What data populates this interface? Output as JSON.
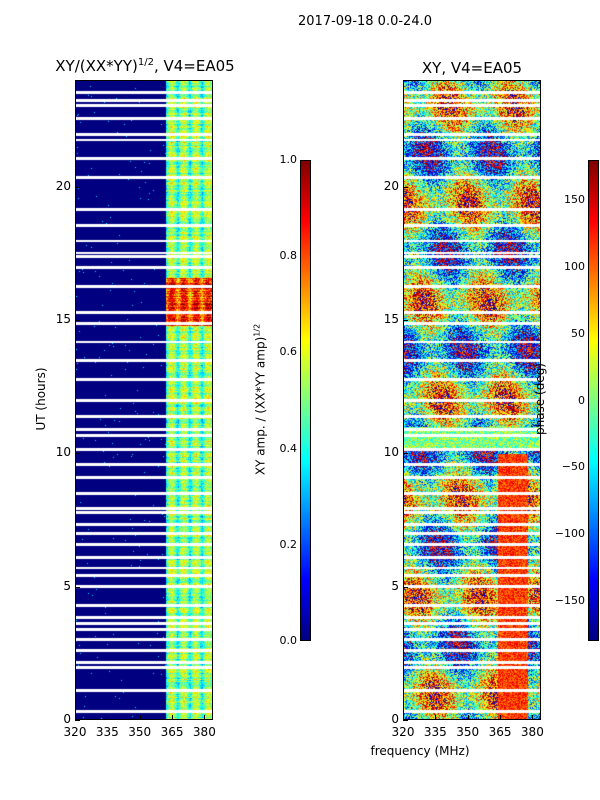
{
  "figure": {
    "suptitle": "2017-09-18 0.0-24.0",
    "xlabel": "frequency (MHz)",
    "ylabel": "UT (hours)"
  },
  "chart_data": [
    {
      "type": "heatmap",
      "title_main": "XY/(XX*YY)",
      "title_sup": "1/2",
      "title_suffix": ", V4=EA05",
      "xlim": [
        320,
        384
      ],
      "ylim": [
        0,
        24
      ],
      "xticks": [
        320,
        335,
        350,
        365,
        380
      ],
      "yticks": [
        0,
        5,
        10,
        15,
        20
      ],
      "colorbar": {
        "label_main": "XY amp. / (XX*YY amp)",
        "label_sup": "1/2",
        "range": [
          0.0,
          1.0
        ],
        "ticks": [
          "0.0",
          "0.2",
          "0.4",
          "0.6",
          "0.8",
          "1.0"
        ],
        "tick_values": [
          0.0,
          0.2,
          0.4,
          0.6,
          0.8,
          1.0
        ],
        "colormap": "jet"
      },
      "noted_feature": "low amplitude (~0) below 362 MHz; elevated amplitude 0.3-0.6 in 362-384 MHz band, peaking near 0.8 around 15-16.5 UT"
    },
    {
      "type": "heatmap",
      "title": "XY, V4=EA05",
      "xlim": [
        320,
        384
      ],
      "ylim": [
        0,
        24
      ],
      "xticks": [
        320,
        335,
        350,
        365,
        380
      ],
      "yticks": [
        0,
        5,
        10,
        15,
        20
      ],
      "colorbar": {
        "label": "phase (deg)",
        "range": [
          -180,
          180
        ],
        "ticks": [
          "−150",
          "−100",
          "−50",
          "0",
          "50",
          "100",
          "150"
        ],
        "tick_values": [
          -150,
          -100,
          -50,
          0,
          50,
          100,
          150
        ],
        "colormap": "jet"
      },
      "noted_feature": "noisy phase across full band; coherent phase structure near 365-375 MHz"
    }
  ],
  "flag_rows_hours": [
    0.3,
    1.1,
    1.95,
    2.15,
    2.6,
    3.0,
    3.4,
    3.6,
    3.85,
    4.3,
    5.0,
    5.4,
    5.7,
    6.1,
    6.6,
    7.0,
    7.35,
    7.8,
    7.95,
    8.5,
    9.1,
    9.6,
    10.15,
    10.7,
    10.9,
    11.4,
    12.0,
    12.8,
    13.5,
    14.2,
    14.9,
    15.3,
    16.3,
    17.0,
    17.4,
    17.55,
    18.0,
    18.6,
    19.2,
    20.4,
    21.1,
    21.8,
    22.0,
    22.6,
    23.1,
    23.3,
    23.6
  ]
}
